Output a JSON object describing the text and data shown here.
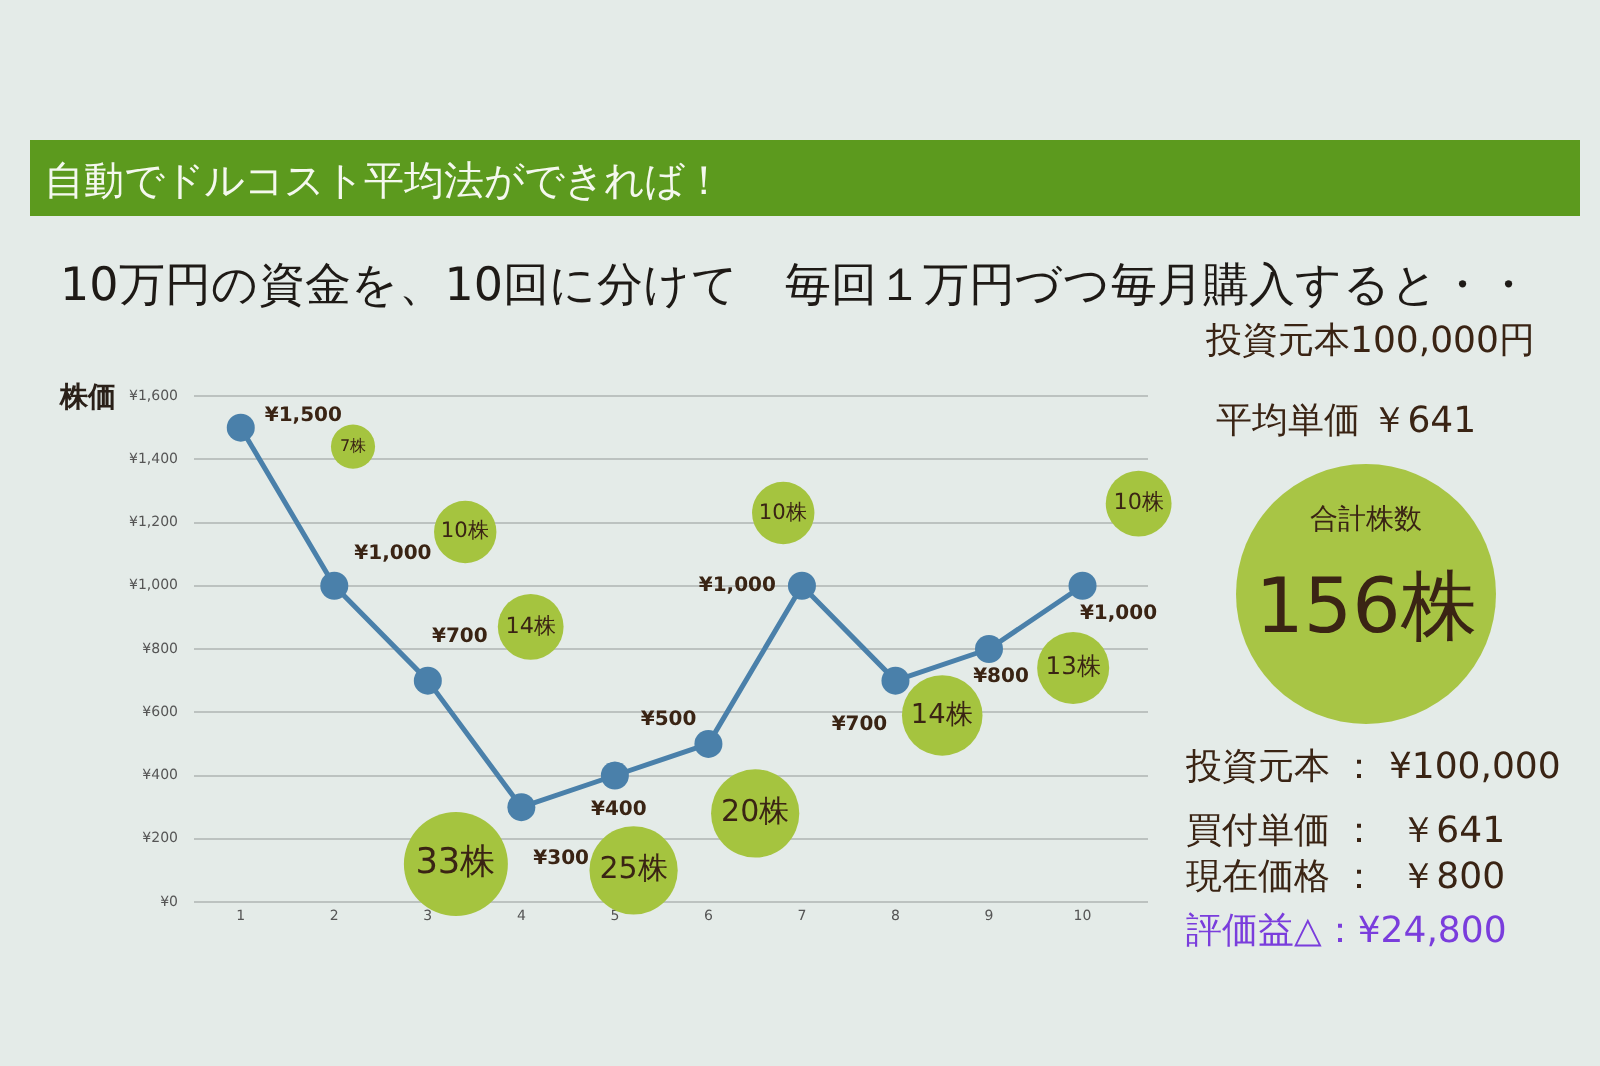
{
  "chart_data": {
    "type": "line",
    "title": "自動でドルコスト平均法ができれば！",
    "subtitle": "10万円の資金を、10回に分けて　毎回１万円づつ毎月購入すると・・",
    "ylabel": "株価",
    "x": [
      1,
      2,
      3,
      4,
      5,
      6,
      7,
      8,
      9,
      10
    ],
    "xlim": [
      0.5,
      10.7
    ],
    "xticks": [
      1,
      2,
      3,
      4,
      5,
      6,
      7,
      8,
      9,
      10
    ],
    "ylim": [
      0,
      1600
    ],
    "yticks": [
      {
        "value": 0,
        "label": "¥0"
      },
      {
        "value": 200,
        "label": "¥200"
      },
      {
        "value": 400,
        "label": "¥400"
      },
      {
        "value": 600,
        "label": "¥600"
      },
      {
        "value": 800,
        "label": "¥800"
      },
      {
        "value": 1000,
        "label": "¥1,000"
      },
      {
        "value": 1200,
        "label": "¥1,200"
      },
      {
        "value": 1400,
        "label": "¥1,400"
      },
      {
        "value": 1600,
        "label": "¥1,600"
      }
    ],
    "grid": "y",
    "marker": "circle",
    "line_style": "solid",
    "series": [
      {
        "color": "#4a80aa",
        "values": [
          1500,
          1000,
          700,
          300,
          400,
          500,
          1000,
          700,
          800,
          1000
        ],
        "value_labels": [
          "¥1,500",
          "¥1,000",
          "¥700",
          "¥300",
          "¥400",
          "¥500",
          "¥1,000",
          "¥700",
          "¥800",
          "¥1,000"
        ]
      },
      {
        "type": "bubble",
        "color": "#a5c43f",
        "x": [
          2.2,
          3.4,
          4.1,
          3.3,
          5.2,
          6.5,
          6.8,
          8.5,
          9.9,
          10.6
        ],
        "values": [
          1440,
          1170,
          870,
          120,
          100,
          280,
          1230,
          590,
          740,
          1260
        ],
        "sizes": [
          0.18,
          0.36,
          0.4,
          1,
          0.72,
          0.72,
          0.36,
          0.6,
          0.48,
          0.4
        ]
      }
    ],
    "annotations": [
      {
        "text": "7株",
        "x": 2.2,
        "y": 1440
      },
      {
        "text": "10株",
        "x": 3.4,
        "y": 1170
      },
      {
        "text": "14株",
        "x": 4.1,
        "y": 870
      },
      {
        "text": "33株",
        "x": 3.3,
        "y": 120
      },
      {
        "text": "25株",
        "x": 5.2,
        "y": 100
      },
      {
        "text": "20株",
        "x": 6.5,
        "y": 280
      },
      {
        "text": "10株",
        "x": 6.8,
        "y": 1230
      },
      {
        "text": "14株",
        "x": 8.5,
        "y": 590
      },
      {
        "text": "13株",
        "x": 9.9,
        "y": 740
      },
      {
        "text": "10株",
        "x": 10.6,
        "y": 1260
      },
      "投資元本100,000円",
      "平均単価 ￥641",
      "合計株数",
      "156株",
      "投資元本 ： ¥100,000",
      "買付単価 ：  ￥641",
      "現在価格 ：  ￥800",
      "評価益△：¥24,800"
    ]
  }
}
